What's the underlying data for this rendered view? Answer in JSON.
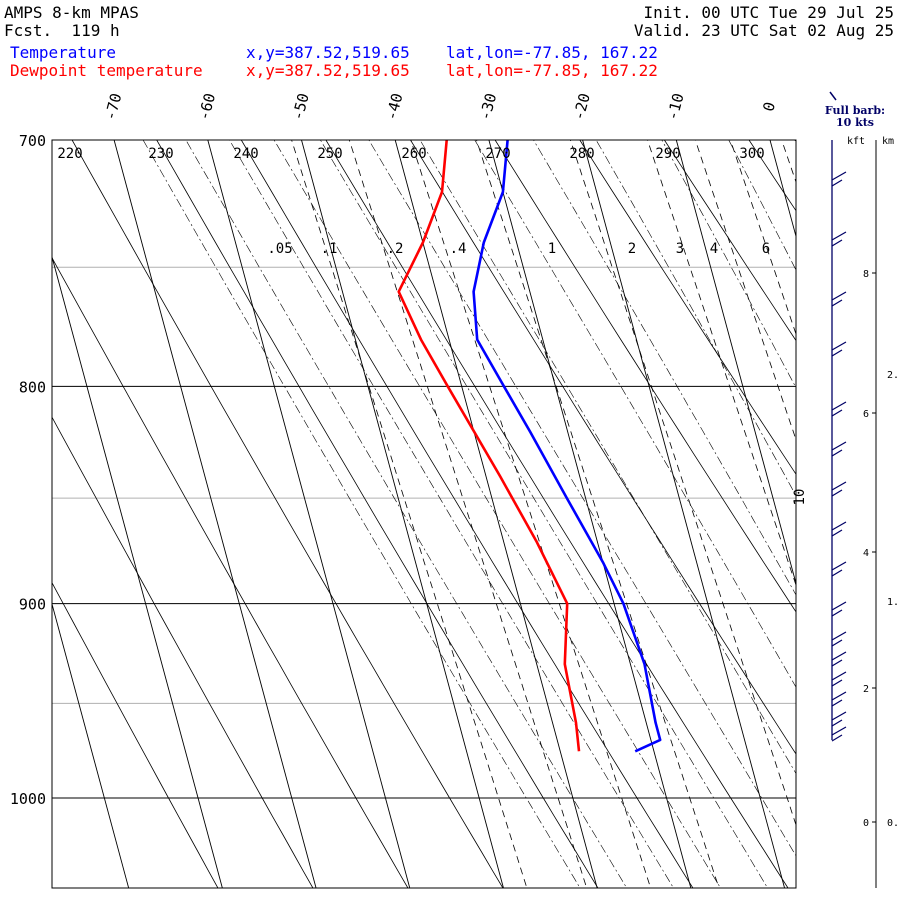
{
  "header": {
    "model": "AMPS 8-km MPAS",
    "forecast": "Fcst.  119 h",
    "init": "Init. 00 UTC Tue 29 Jul 25",
    "valid": "Valid. 23 UTC Sat 02 Aug 25",
    "temp_label": "Temperature",
    "temp_coords": "x,y=387.52,519.65",
    "temp_latlon": "lat,lon=-77.85, 167.22",
    "dew_label": "Dewpoint temperature",
    "dew_coords": "x,y=387.52,519.65",
    "dew_latlon": "lat,lon=-77.85, 167.22"
  },
  "barb_legend": {
    "title": "Full barb:",
    "value": "10 kts",
    "kft": "kft",
    "km": "km"
  },
  "chart_data": {
    "type": "line",
    "skew_t": true,
    "y_scale": "log-pressure",
    "ylim_hpa": [
      1040,
      700
    ],
    "pressure_ticks": [
      700,
      800,
      900,
      1000
    ],
    "temperature_ticks_c": [
      -70,
      -60,
      -50,
      -40,
      -30,
      -20,
      -10,
      0
    ],
    "theta_labels_k": [
      220,
      230,
      240,
      250,
      260,
      270,
      280,
      290,
      300
    ],
    "mixing_ratio_labels": [
      ".05",
      ".1",
      ".2",
      ".4",
      "1",
      "2",
      "3",
      "4",
      "6",
      "10"
    ],
    "series": [
      {
        "name": "Temperature",
        "color": "#0000ff",
        "points": [
          {
            "p": 975,
            "t": -32.0
          },
          {
            "p": 969,
            "t": -29.0
          },
          {
            "p": 960,
            "t": -29.0
          },
          {
            "p": 930,
            "t": -28.5
          },
          {
            "p": 900,
            "t": -29.0
          },
          {
            "p": 880,
            "t": -30.0
          },
          {
            "p": 850,
            "t": -32.0
          },
          {
            "p": 820,
            "t": -34.0
          },
          {
            "p": 800,
            "t": -35.5
          },
          {
            "p": 780,
            "t": -37.0
          },
          {
            "p": 760,
            "t": -36.0
          },
          {
            "p": 740,
            "t": -33.5
          },
          {
            "p": 720,
            "t": -30.0
          },
          {
            "p": 700,
            "t": -28.0
          }
        ]
      },
      {
        "name": "Dewpoint temperature",
        "color": "#ff0000",
        "points": [
          {
            "p": 975,
            "t": -38.0
          },
          {
            "p": 960,
            "t": -37.5
          },
          {
            "p": 930,
            "t": -37.0
          },
          {
            "p": 900,
            "t": -35.0
          },
          {
            "p": 870,
            "t": -36.5
          },
          {
            "p": 840,
            "t": -38.5
          },
          {
            "p": 800,
            "t": -41.5
          },
          {
            "p": 780,
            "t": -43.0
          },
          {
            "p": 760,
            "t": -44.0
          },
          {
            "p": 740,
            "t": -40.0
          },
          {
            "p": 720,
            "t": -36.5
          },
          {
            "p": 700,
            "t": -34.5
          }
        ]
      }
    ],
    "height_scale_kft": [
      0,
      2,
      4,
      6,
      8
    ],
    "height_scale_km": [
      "0.",
      "1.",
      "2."
    ]
  }
}
